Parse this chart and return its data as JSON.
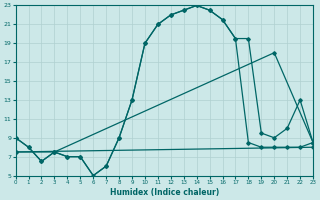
{
  "xlabel": "Humidex (Indice chaleur)",
  "xlim": [
    0,
    23
  ],
  "ylim": [
    5,
    23
  ],
  "xticks": [
    0,
    1,
    2,
    3,
    4,
    5,
    6,
    7,
    8,
    9,
    10,
    11,
    12,
    13,
    14,
    15,
    16,
    17,
    18,
    19,
    20,
    21,
    22,
    23
  ],
  "yticks": [
    5,
    7,
    9,
    11,
    13,
    15,
    17,
    19,
    21,
    23
  ],
  "bg_color": "#cce8e8",
  "grid_color": "#b0d0d0",
  "line_color": "#006666",
  "curve1_x": [
    0,
    1,
    2,
    3,
    4,
    5,
    6,
    7,
    8,
    9,
    10,
    11,
    12,
    13,
    14,
    15,
    16,
    17,
    18,
    19,
    20,
    21,
    22,
    23
  ],
  "curve1_y": [
    9,
    8,
    6.5,
    7.5,
    7.0,
    7.0,
    5.0,
    6.0,
    9.0,
    13.0,
    19.0,
    21.0,
    22.0,
    22.5,
    23.0,
    22.5,
    21.5,
    19.5,
    8.5,
    8.0,
    8.0,
    8.0,
    8.0,
    8.5
  ],
  "curve2_x": [
    0,
    1,
    2,
    3,
    4,
    5,
    6,
    7,
    8,
    9,
    10,
    11,
    12,
    13,
    14,
    15,
    16,
    17,
    18,
    19,
    20,
    21,
    22,
    23
  ],
  "curve2_y": [
    9,
    8,
    6.5,
    7.5,
    7.0,
    7.0,
    5.0,
    6.0,
    9.0,
    13.0,
    19.0,
    21.0,
    22.0,
    22.5,
    23.0,
    22.5,
    21.5,
    19.5,
    19.5,
    9.5,
    9.0,
    10.0,
    13.0,
    8.5
  ],
  "curve3_x": [
    0,
    3,
    20,
    23
  ],
  "curve3_y": [
    7.5,
    7.5,
    18.0,
    8.5
  ],
  "curve4_x": [
    0,
    23
  ],
  "curve4_y": [
    7.5,
    8.0
  ],
  "figsize": [
    3.2,
    2.0
  ],
  "dpi": 100
}
